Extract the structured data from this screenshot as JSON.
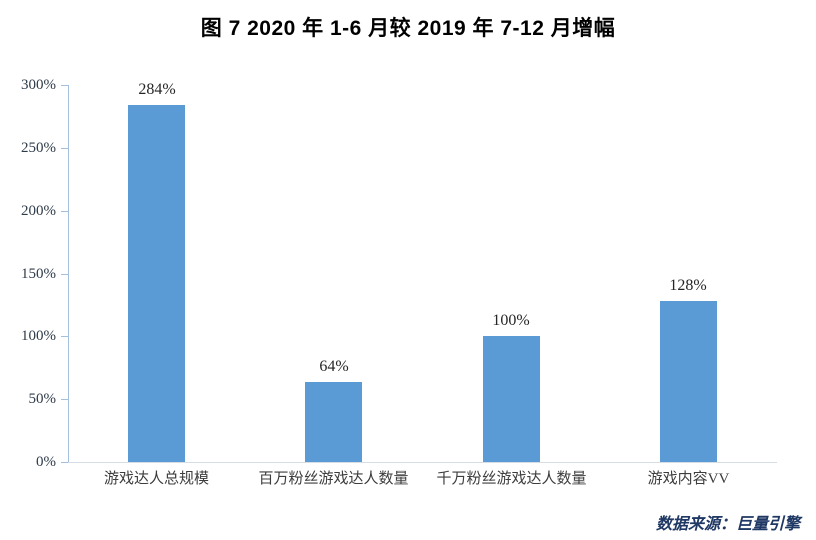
{
  "title": "图 7  2020 年 1-6 月较 2019 年 7-12 月增幅",
  "source": "数据来源：巨量引擎",
  "chart_data": {
    "type": "bar",
    "title": "图 7  2020 年 1-6 月较 2019 年 7-12 月增幅",
    "categories": [
      "游戏达人总规模",
      "百万粉丝游戏达人数量",
      "千万粉丝游戏达人数量",
      "游戏内容VV"
    ],
    "values": [
      284,
      64,
      100,
      128
    ],
    "bar_labels": [
      "284%",
      "64%",
      "100%",
      "128%"
    ],
    "xlabel": "",
    "ylabel": "",
    "ylim": [
      0,
      300
    ],
    "yticks": [
      0,
      50,
      100,
      150,
      200,
      250,
      300
    ],
    "ytick_labels": [
      "0%",
      "50%",
      "100%",
      "150%",
      "200%",
      "250%",
      "300%"
    ],
    "grid": false,
    "legend_position": "none",
    "bar_color": "#5B9BD5",
    "axis_color": "#A3C0DE",
    "baseline_color": "#D7DDE4"
  }
}
